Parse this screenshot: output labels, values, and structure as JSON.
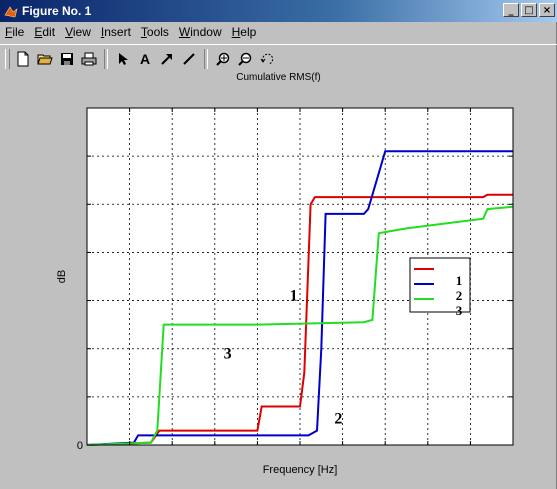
{
  "window": {
    "title": "Figure No. 1",
    "controls": [
      "_",
      "□",
      "×"
    ]
  },
  "menubar": {
    "items": [
      {
        "underline": "F",
        "rest": "ile"
      },
      {
        "underline": "E",
        "rest": "dit"
      },
      {
        "underline": "V",
        "rest": "iew"
      },
      {
        "underline": "I",
        "rest": "nsert"
      },
      {
        "underline": "T",
        "rest": "ools"
      },
      {
        "underline": "W",
        "rest": "indow"
      },
      {
        "underline": "H",
        "rest": "elp"
      }
    ]
  },
  "toolbar": {
    "icons": [
      "new-file-icon",
      "open-folder-icon",
      "save-icon",
      "print-icon",
      "select-arrow-icon",
      "insert-text-icon",
      "insert-arrow-icon",
      "insert-line-icon",
      "zoom-in-icon",
      "zoom-out-icon",
      "rotate-icon"
    ]
  },
  "chart_data": {
    "type": "line",
    "title": "Cumulative RMS(f)",
    "xlabel": "Frequency [Hz]",
    "ylabel": "dB",
    "y_tick_labels": [
      "0"
    ],
    "grid": true,
    "xlim": [
      0,
      10
    ],
    "ylim": [
      0,
      7
    ],
    "series": [
      {
        "name": "1",
        "color": "#dd0000",
        "x": [
          0,
          1.5,
          1.7,
          4,
          4.1,
          5,
          5.1,
          5.25,
          5.35,
          6,
          9.3,
          9.4,
          10
        ],
        "y": [
          0,
          0.05,
          0.3,
          0.3,
          0.8,
          0.8,
          1.5,
          5.0,
          5.15,
          5.15,
          5.15,
          5.2,
          5.2
        ]
      },
      {
        "name": "2",
        "color": "#0000cc",
        "x": [
          0,
          1.1,
          1.2,
          2.5,
          4,
          5.2,
          5.4,
          5.5,
          5.6,
          6,
          6.5,
          6.6,
          7.0,
          10
        ],
        "y": [
          0,
          0.05,
          0.2,
          0.2,
          0.2,
          0.2,
          0.3,
          2.0,
          4.8,
          4.8,
          4.8,
          4.9,
          6.1,
          6.1
        ]
      },
      {
        "name": "3",
        "color": "#22dd22",
        "x": [
          0,
          1.5,
          1.65,
          1.8,
          4,
          6.5,
          6.7,
          6.85,
          7.5,
          9.3,
          9.4,
          10
        ],
        "y": [
          0,
          0.05,
          0.3,
          2.5,
          2.5,
          2.55,
          2.6,
          4.4,
          4.5,
          4.7,
          4.9,
          4.95
        ]
      }
    ],
    "legend": {
      "placement": "right",
      "entries": [
        "1",
        "2",
        "3"
      ]
    },
    "annotations": [
      {
        "text": "1",
        "x": 4.85,
        "y": 3.0
      },
      {
        "text": "2",
        "x": 5.9,
        "y": 0.45
      },
      {
        "text": "3",
        "x": 3.3,
        "y": 1.8
      }
    ]
  }
}
